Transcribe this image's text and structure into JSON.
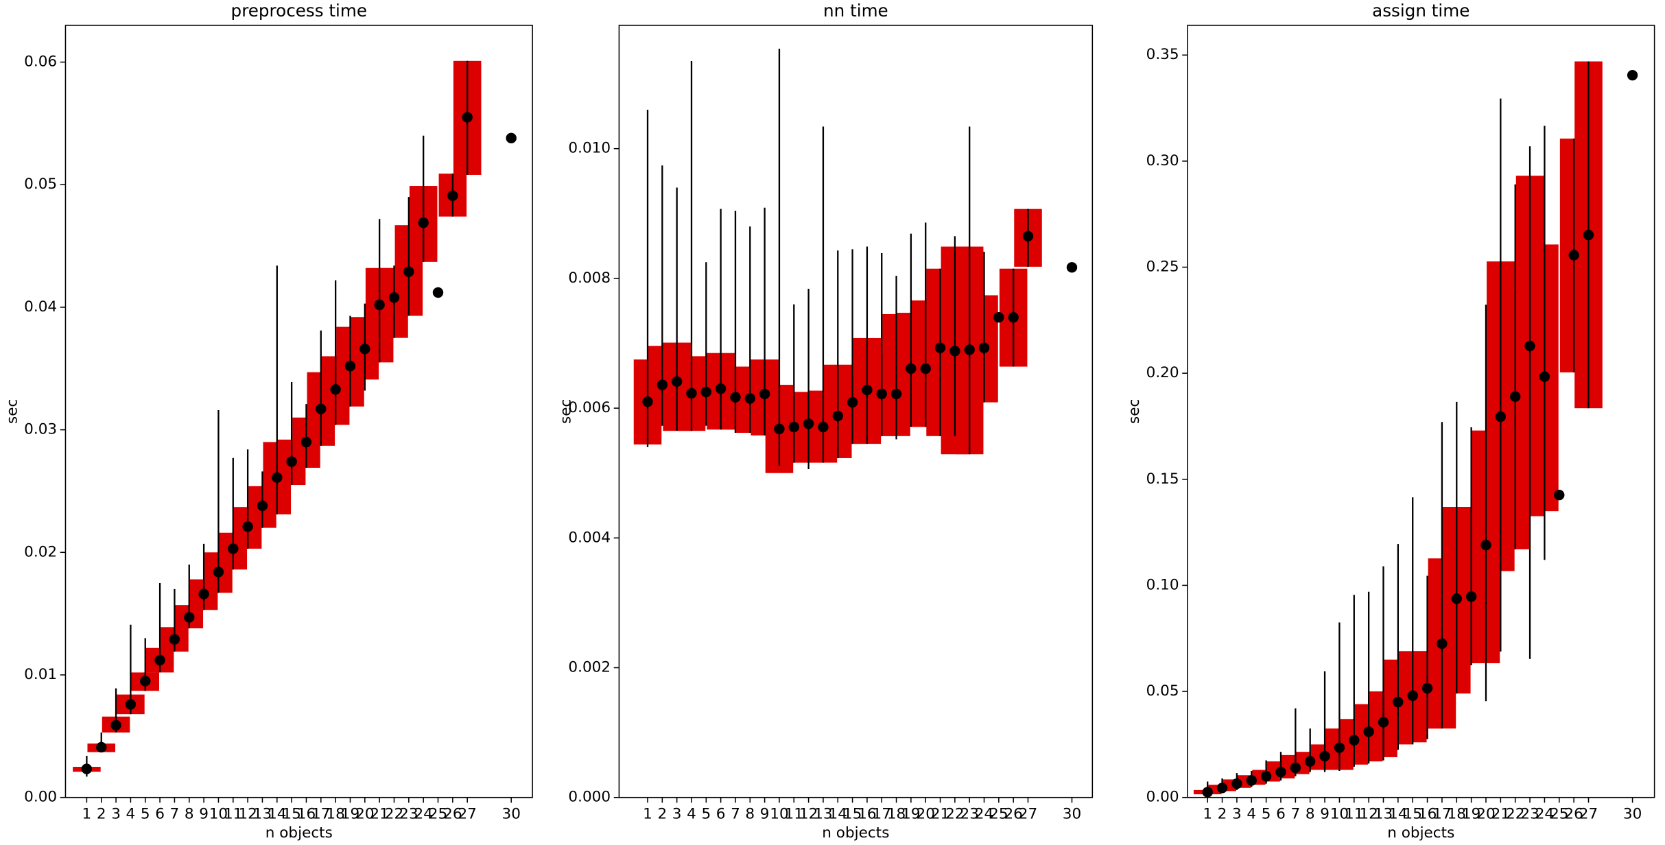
{
  "chart_data": [
    {
      "type": "box",
      "title": "preprocess time",
      "xlabel": "n objects",
      "ylabel": "sec",
      "color": "#dd0000",
      "marker_color": "#000000",
      "x": [
        1,
        2,
        3,
        4,
        5,
        6,
        7,
        8,
        9,
        10,
        11,
        12,
        13,
        14,
        15,
        16,
        17,
        18,
        19,
        20,
        21,
        22,
        23,
        24,
        25,
        26,
        27,
        30
      ],
      "values": [
        0.00233,
        0.0041,
        0.0059,
        0.0076,
        0.0095,
        0.0112,
        0.0129,
        0.0147,
        0.0166,
        0.0184,
        0.0203,
        0.0221,
        0.0238,
        0.0261,
        0.0274,
        0.029,
        0.0317,
        0.0333,
        0.0352,
        0.0366,
        0.0402,
        0.0408,
        0.0429,
        0.0469,
        0.0412,
        0.0491,
        0.0555,
        0.0538
      ],
      "q1": [
        0.0021,
        0.0037,
        0.0053,
        0.0068,
        0.0087,
        0.0102,
        0.0119,
        0.0138,
        0.0153,
        0.0167,
        0.0186,
        0.0203,
        0.022,
        0.0231,
        0.0255,
        0.0269,
        0.0287,
        0.0304,
        0.0319,
        0.0341,
        0.0355,
        0.0375,
        0.0393,
        0.0437,
        null,
        0.0474,
        0.0508,
        null
      ],
      "q3": [
        0.0025,
        0.0044,
        0.0066,
        0.0084,
        0.0102,
        0.0122,
        0.0139,
        0.0157,
        0.0178,
        0.02,
        0.0216,
        0.0237,
        0.0254,
        0.029,
        0.0292,
        0.031,
        0.0347,
        0.036,
        0.0384,
        0.0392,
        0.0432,
        0.0432,
        0.0467,
        0.0499,
        null,
        0.0509,
        0.0601,
        null
      ],
      "min": [
        0.0017,
        0.0037,
        0.0053,
        0.0068,
        0.0087,
        0.0102,
        0.0119,
        0.0138,
        0.0153,
        0.0167,
        0.0186,
        0.0203,
        0.022,
        0.0231,
        0.0255,
        0.0269,
        0.0287,
        0.0304,
        0.0319,
        0.0332,
        0.0355,
        0.0375,
        0.0393,
        0.0437,
        null,
        0.0474,
        0.0508,
        null
      ],
      "max": [
        0.0034,
        0.0053,
        0.0089,
        0.0141,
        0.013,
        0.0175,
        0.017,
        0.019,
        0.0207,
        0.0316,
        0.0277,
        0.0284,
        0.0266,
        0.0434,
        0.0339,
        0.0321,
        0.0381,
        0.0422,
        0.0393,
        0.0403,
        0.0472,
        0.0434,
        0.049,
        0.054,
        null,
        0.0509,
        0.0601,
        null
      ],
      "xlim": [
        -0.45,
        31.45
      ],
      "ylim": [
        0,
        0.063
      ],
      "xticks": [
        1,
        2,
        3,
        4,
        5,
        6,
        7,
        8,
        9,
        10,
        11,
        12,
        13,
        14,
        15,
        16,
        17,
        18,
        19,
        20,
        21,
        22,
        23,
        24,
        25,
        26,
        27,
        30
      ],
      "yticks": [
        {
          "value": 0,
          "label": "0.00"
        },
        {
          "value": 0.01,
          "label": "0.01"
        },
        {
          "value": 0.02,
          "label": "0.02"
        },
        {
          "value": 0.03,
          "label": "0.03"
        },
        {
          "value": 0.04,
          "label": "0.04"
        },
        {
          "value": 0.05,
          "label": "0.05"
        },
        {
          "value": 0.06,
          "label": "0.06"
        }
      ]
    },
    {
      "type": "box",
      "title": "nn time",
      "xlabel": "n objects",
      "ylabel": "sec",
      "color": "#dd0000",
      "marker_color": "#000000",
      "x": [
        1,
        2,
        3,
        4,
        5,
        6,
        7,
        8,
        9,
        10,
        11,
        12,
        13,
        14,
        15,
        16,
        17,
        18,
        19,
        20,
        21,
        22,
        23,
        24,
        25,
        26,
        27,
        30
      ],
      "values": [
        0.0061,
        0.00636,
        0.00641,
        0.00623,
        0.00625,
        0.0063,
        0.00617,
        0.00615,
        0.00622,
        0.00568,
        0.00571,
        0.00576,
        0.00571,
        0.00588,
        0.00609,
        0.00628,
        0.00622,
        0.00622,
        0.00661,
        0.00661,
        0.00693,
        0.00688,
        0.0069,
        0.00693,
        0.0074,
        0.0074,
        0.00865,
        0.00817
      ],
      "q1": [
        0.00544,
        0.00573,
        0.00565,
        0.00565,
        0.00573,
        0.00567,
        0.00567,
        0.00562,
        0.00558,
        0.005,
        0.00516,
        0.00516,
        0.00516,
        0.00523,
        0.00545,
        0.00545,
        0.00557,
        0.00557,
        0.00571,
        0.00571,
        0.00557,
        0.00529,
        0.00529,
        0.00609,
        null,
        0.00664,
        0.00818,
        null
      ],
      "q3": [
        0.00675,
        0.00696,
        0.00701,
        0.0068,
        0.0068,
        0.00685,
        0.00664,
        0.00664,
        0.00675,
        0.00636,
        0.00625,
        0.00625,
        0.00627,
        0.00667,
        0.00651,
        0.00708,
        0.00682,
        0.00745,
        0.00747,
        0.00766,
        0.00815,
        0.00849,
        0.00849,
        0.00774,
        null,
        0.00815,
        0.00907,
        null
      ],
      "min": [
        0.0054,
        0.00573,
        0.00565,
        0.00565,
        0.00573,
        0.00567,
        0.00562,
        0.00562,
        0.00558,
        0.00511,
        0.00516,
        0.00506,
        0.00516,
        0.00523,
        0.00545,
        0.00545,
        0.00557,
        0.00552,
        0.00571,
        0.00571,
        0.00557,
        0.00557,
        0.00529,
        0.00609,
        null,
        0.00664,
        0.00818,
        null
      ],
      "max": [
        0.0106,
        0.00974,
        0.0094,
        0.01135,
        0.00825,
        0.00907,
        0.00904,
        0.0088,
        0.00909,
        0.01154,
        0.0076,
        0.00784,
        0.01034,
        0.00843,
        0.00845,
        0.00849,
        0.00839,
        0.00804,
        0.00869,
        0.00886,
        0.00815,
        0.00865,
        0.01034,
        0.00841,
        null,
        0.00815,
        0.00907,
        null
      ],
      "xlim": [
        -0.95,
        31.4
      ],
      "ylim": [
        0,
        0.0119
      ],
      "xticks": [
        1,
        2,
        3,
        4,
        5,
        6,
        7,
        8,
        9,
        10,
        11,
        12,
        13,
        14,
        15,
        16,
        17,
        18,
        19,
        20,
        21,
        22,
        23,
        24,
        25,
        26,
        27,
        30
      ],
      "yticks": [
        {
          "value": 0,
          "label": "0.000"
        },
        {
          "value": 0.002,
          "label": "0.002"
        },
        {
          "value": 0.004,
          "label": "0.004"
        },
        {
          "value": 0.006,
          "label": "0.006"
        },
        {
          "value": 0.008,
          "label": "0.008"
        },
        {
          "value": 0.01,
          "label": "0.010"
        }
      ]
    },
    {
      "type": "box",
      "title": "assign time",
      "xlabel": "n objects",
      "ylabel": "sec",
      "color": "#dd0000",
      "marker_color": "#000000",
      "x": [
        1,
        2,
        3,
        4,
        5,
        6,
        7,
        8,
        9,
        10,
        11,
        12,
        13,
        14,
        15,
        16,
        17,
        18,
        19,
        20,
        21,
        22,
        23,
        24,
        25,
        26,
        27,
        30
      ],
      "values": [
        0.0025,
        0.0045,
        0.0065,
        0.008,
        0.01,
        0.012,
        0.014,
        0.017,
        0.0195,
        0.0235,
        0.027,
        0.031,
        0.0355,
        0.045,
        0.048,
        0.0515,
        0.0725,
        0.0937,
        0.0947,
        0.119,
        0.1795,
        0.189,
        0.2129,
        0.1984,
        0.1426,
        0.2557,
        0.2652,
        0.3405
      ],
      "q1": [
        0.0015,
        0.003,
        0.0045,
        0.006,
        0.0075,
        0.009,
        0.011,
        0.013,
        0.013,
        0.013,
        0.0155,
        0.017,
        0.019,
        0.025,
        0.026,
        0.0325,
        0.0325,
        0.049,
        0.0633,
        0.0633,
        0.1067,
        0.117,
        0.1326,
        0.135,
        null,
        0.2004,
        0.1835,
        null
      ],
      "q3": [
        0.0035,
        0.006,
        0.0085,
        0.0105,
        0.013,
        0.017,
        0.02,
        0.0215,
        0.025,
        0.0325,
        0.037,
        0.044,
        0.05,
        0.065,
        0.069,
        0.069,
        0.1127,
        0.137,
        0.137,
        0.173,
        0.2527,
        0.2393,
        0.2931,
        0.2607,
        null,
        0.3106,
        0.347,
        null
      ],
      "min": [
        0.0015,
        0.0025,
        0.0035,
        0.005,
        0.0065,
        0.008,
        0.01,
        0.012,
        0.012,
        0.0125,
        0.0145,
        0.016,
        0.0175,
        0.0225,
        0.025,
        0.0275,
        0.0325,
        0.049,
        0.0623,
        0.0454,
        0.0688,
        0.117,
        0.0653,
        0.112,
        null,
        0.2004,
        0.1835,
        null
      ],
      "max": [
        0.0075,
        0.009,
        0.0115,
        0.0125,
        0.0175,
        0.0215,
        0.042,
        0.0325,
        0.0595,
        0.0825,
        0.0955,
        0.097,
        0.109,
        0.1195,
        0.1415,
        0.1045,
        0.177,
        0.1865,
        0.1745,
        0.2323,
        0.3295,
        0.289,
        0.307,
        0.3166,
        null,
        0.3106,
        0.347,
        null
      ],
      "xlim": [
        -0.37,
        31.5
      ],
      "ylim": [
        0,
        0.364
      ],
      "xticks": [
        1,
        2,
        3,
        4,
        5,
        6,
        7,
        8,
        9,
        10,
        11,
        12,
        13,
        14,
        15,
        16,
        17,
        18,
        19,
        20,
        21,
        22,
        23,
        24,
        25,
        26,
        27,
        30
      ],
      "yticks": [
        {
          "value": 0,
          "label": "0.00"
        },
        {
          "value": 0.05,
          "label": "0.05"
        },
        {
          "value": 0.1,
          "label": "0.10"
        },
        {
          "value": 0.15,
          "label": "0.15"
        },
        {
          "value": 0.2,
          "label": "0.20"
        },
        {
          "value": 0.25,
          "label": "0.25"
        },
        {
          "value": 0.3,
          "label": "0.30"
        },
        {
          "value": 0.35,
          "label": "0.35"
        }
      ]
    }
  ]
}
